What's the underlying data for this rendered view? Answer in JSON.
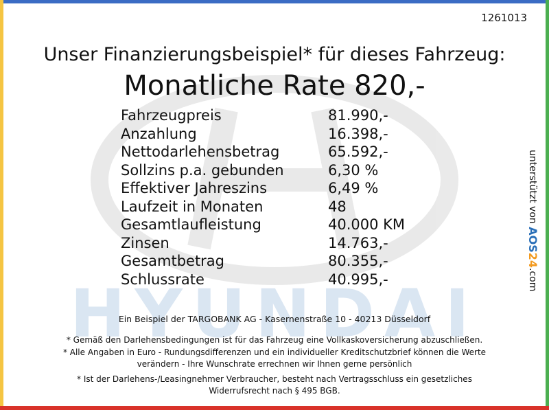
{
  "offer_id": "1261013",
  "headline": "Unser Finanzierungsbeispiel* für dieses Fahrzeug:",
  "rate": "Monatliche Rate 820,-",
  "rows": [
    [
      "Fahrzeugpreis",
      "81.990,-"
    ],
    [
      "Anzahlung",
      "16.398,-"
    ],
    [
      "Nettodarlehensbetrag",
      "65.592,-"
    ],
    [
      "Sollzins p.a. gebunden",
      "6,30 %"
    ],
    [
      "Effektiver Jahreszins",
      "6,49 %"
    ],
    [
      "Laufzeit in Monaten",
      "48"
    ],
    [
      "Gesamtlaufleistung",
      "40.000 KM"
    ],
    [
      "Zinsen",
      "14.763,-"
    ],
    [
      "Gesamtbetrag",
      "80.355,-"
    ],
    [
      "Schlussrate",
      "40.995,-"
    ]
  ],
  "lender": "Ein Beispiel der TARGOBANK AG - Kasernenstraße 10 - 40213 Düsseldorf",
  "notes": [
    [
      "* Gemäß den Darlehensbedingungen ist für das Fahrzeug eine Vollkaskoversicherung abzuschließen."
    ],
    [
      "* Alle Angaben in Euro - Rundungsdifferenzen und ein individueller Kreditschutzbrief können die Werte",
      "verändern - Ihre Wunschrate errechnen wir Ihnen gerne persönlich"
    ],
    [
      "* Ist der Darlehens-/Leasingnehmer Verbraucher, besteht nach Vertragsschluss ein gesetzliches",
      "Widerrufsrecht nach § 495 BGB."
    ]
  ],
  "watermark": "HYUNDAI",
  "sponsor": {
    "prefix": "unterstützt von",
    "logo_a": "AOS",
    "logo_b": "24",
    "suffix": ".com"
  }
}
